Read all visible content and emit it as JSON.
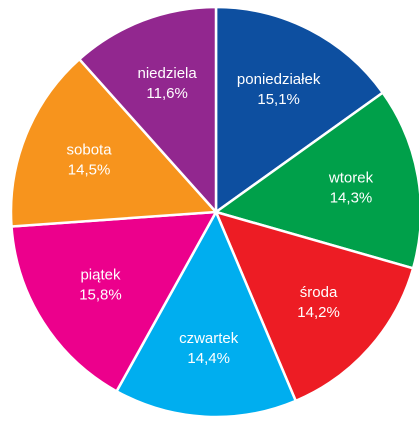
{
  "chart_data": {
    "type": "pie",
    "categories": [
      "poniedziałek",
      "wtorek",
      "środa",
      "czwartek",
      "piątek",
      "sobota",
      "niedziela"
    ],
    "values": [
      15.1,
      14.3,
      14.2,
      14.4,
      15.8,
      14.5,
      11.6
    ],
    "value_labels": [
      "15,1%",
      "14,3%",
      "14,2%",
      "14,4%",
      "15,8%",
      "14,5%",
      "11,6%"
    ],
    "colors": [
      "#0d4fa0",
      "#00a04a",
      "#ed1c24",
      "#00aeef",
      "#ec008c",
      "#f7941d",
      "#92278f"
    ]
  }
}
